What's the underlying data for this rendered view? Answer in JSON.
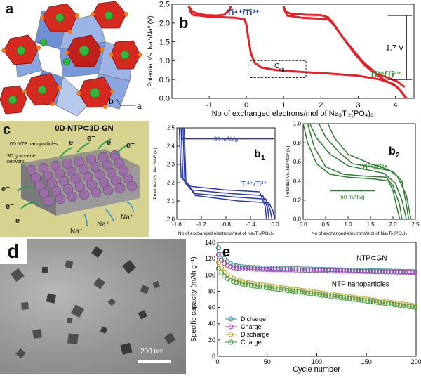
{
  "labels": {
    "a": "a",
    "b": "b",
    "c": "c",
    "d": "d",
    "e": "e",
    "b1": "b",
    "b1_sub": "1",
    "b2": "b",
    "b2_sub": "2"
  },
  "crystal": {
    "axis_a": "a",
    "axis_b": "b"
  },
  "scheme": {
    "title": "0D-NTP⊂3D-GN",
    "label_particles": "0D NTP nanoparticles",
    "label_network_1": "3D graphene",
    "label_network_2": "network",
    "electron": "e⁻",
    "sodium": "Na⁺",
    "colors": {
      "background": "#d6d391",
      "spheres": "#9a6fa6",
      "arrows": "#2e9e56"
    }
  },
  "tem": {
    "scale_bar": "200 nm"
  },
  "colors": {
    "red": "#e0242a",
    "blue": "#2b3aa8",
    "green": "#2e7d32",
    "green_text": "#2e8b2e",
    "blue_text": "#1f3fa8"
  },
  "chart_data": [
    {
      "id": "b",
      "type": "line",
      "xlabel": "No of exchanged electrons/mol of Na₃Ti₂(PO₄)₃",
      "ylabel": "Potential Vs. Na⁺/Na⁰ (V)",
      "xlim": [
        -2,
        4.5
      ],
      "ylim": [
        0,
        2.5
      ],
      "xticks": [
        "-1",
        "0",
        "1",
        "2",
        "3",
        "4"
      ],
      "yticks": [
        "0.0",
        "0.5",
        "1.0",
        "1.5",
        "2.0",
        "2.5"
      ],
      "annotations": {
        "ti43": "Ti⁴⁺/Ti³⁺",
        "ti32": "Ti³⁺/Ti²⁺",
        "csp": "C",
        "csp_sub": "sp",
        "gap": "1.7 V"
      },
      "series": [
        {
          "values": [
            [
              -1.55,
              2.45
            ],
            [
              -1.5,
              2.3
            ],
            [
              -1.45,
              2.22
            ],
            [
              -1.0,
              2.17
            ],
            [
              -0.3,
              2.14
            ],
            [
              -0.05,
              2.1
            ],
            [
              0.0,
              1.95
            ],
            [
              0.05,
              1.6
            ],
            [
              0.12,
              1.2
            ],
            [
              0.22,
              0.95
            ],
            [
              0.4,
              0.82
            ],
            [
              0.8,
              0.75
            ],
            [
              1.5,
              0.7
            ],
            [
              2.2,
              0.66
            ],
            [
              3.0,
              0.6
            ],
            [
              3.6,
              0.5
            ],
            [
              3.95,
              0.38
            ],
            [
              4.15,
              0.2
            ],
            [
              4.25,
              0.05
            ],
            [
              4.3,
              0.0
            ]
          ]
        },
        {
          "values": [
            [
              4.3,
              0.0
            ],
            [
              4.05,
              0.3
            ],
            [
              3.6,
              0.55
            ],
            [
              3.1,
              1.0
            ],
            [
              2.6,
              1.6
            ],
            [
              2.35,
              1.95
            ],
            [
              2.2,
              2.1
            ],
            [
              1.5,
              2.14
            ],
            [
              1.1,
              2.2
            ],
            [
              1.02,
              2.35
            ],
            [
              1.0,
              2.45
            ]
          ]
        },
        {
          "values": [
            [
              -1.55,
              2.45
            ],
            [
              -1.45,
              2.3
            ],
            [
              -1.3,
              2.25
            ],
            [
              -1.1,
              2.21
            ],
            [
              -0.8,
              2.2
            ],
            [
              -0.6,
              2.22
            ],
            [
              -0.45,
              2.35
            ],
            [
              -0.42,
              2.45
            ]
          ]
        },
        {
          "values": [
            [
              1.0,
              2.45
            ],
            [
              1.05,
              2.3
            ],
            [
              1.2,
              2.25
            ],
            [
              1.6,
              2.22
            ],
            [
              2.0,
              2.21
            ],
            [
              2.2,
              2.15
            ],
            [
              2.4,
              1.9
            ],
            [
              2.6,
              1.6
            ],
            [
              2.9,
              1.2
            ],
            [
              3.2,
              0.85
            ],
            [
              3.5,
              0.65
            ],
            [
              3.8,
              0.55
            ],
            [
              4.05,
              0.45
            ],
            [
              4.25,
              0.3
            ]
          ]
        }
      ]
    },
    {
      "id": "b1",
      "type": "line",
      "xlabel": "No of exchanged electrons/mol of Na₃Ti₂(PO₄)₃",
      "ylabel": "Potential Vs. Na⁺/Na⁰ (V)",
      "xlim": [
        -1.6,
        0.0
      ],
      "ylim": [
        2.0,
        2.5
      ],
      "xticks": [
        "-1.6",
        "-1.2",
        "-0.8",
        "-0.4",
        "0.0"
      ],
      "yticks": [
        "2.0",
        "2.1",
        "2.2",
        "2.3",
        "2.4",
        "2.5"
      ],
      "annotations": {
        "capacity": "90 mAh/g",
        "ti43": "Ti⁴⁺/Ti³⁺"
      },
      "series": [
        {
          "values": [
            [
              -1.48,
              2.5
            ],
            [
              -1.45,
              2.2
            ],
            [
              -1.3,
              2.13
            ],
            [
              -0.6,
              2.1
            ],
            [
              -0.1,
              2.09
            ],
            [
              -0.04,
              2.05
            ],
            [
              0.0,
              2.0
            ]
          ]
        },
        {
          "values": [
            [
              -1.5,
              2.5
            ],
            [
              -1.47,
              2.2
            ],
            [
              -1.3,
              2.14
            ],
            [
              -0.6,
              2.12
            ],
            [
              -0.15,
              2.11
            ],
            [
              -0.08,
              2.05
            ],
            [
              -0.05,
              2.0
            ]
          ]
        },
        {
          "values": [
            [
              -1.53,
              2.5
            ],
            [
              -1.5,
              2.22
            ],
            [
              -1.35,
              2.16
            ],
            [
              -0.7,
              2.14
            ],
            [
              -0.2,
              2.13
            ],
            [
              -0.12,
              2.06
            ],
            [
              -0.1,
              2.0
            ]
          ]
        },
        {
          "values": [
            [
              -1.56,
              2.5
            ],
            [
              -1.53,
              2.23
            ],
            [
              -1.38,
              2.18
            ],
            [
              -0.8,
              2.16
            ],
            [
              -0.25,
              2.15
            ],
            [
              -0.16,
              2.07
            ],
            [
              -0.14,
              2.0
            ]
          ]
        }
      ]
    },
    {
      "id": "b2",
      "type": "line",
      "xlabel": "No of exchanged electrons/mol of Na₃Ti₂(PO₄)₃",
      "ylabel": "Potential Vs. Na⁺/Na⁰ (V)",
      "xlim": [
        0.0,
        2.5
      ],
      "ylim": [
        0.0,
        1.0
      ],
      "xticks": [
        "0.0",
        "0.5",
        "1.0",
        "1.5",
        "2.0",
        "2.5"
      ],
      "yticks": [
        "0.0",
        "0.2",
        "0.4",
        "0.6",
        "0.8",
        "1.0"
      ],
      "annotations": {
        "capacity": "60 mAh/g",
        "ti32": "Ti³⁺/Ti²⁺"
      },
      "series": [
        {
          "values": [
            [
              0.0,
              1.0
            ],
            [
              0.1,
              0.8
            ],
            [
              0.3,
              0.58
            ],
            [
              0.6,
              0.47
            ],
            [
              1.0,
              0.44
            ],
            [
              1.6,
              0.42
            ],
            [
              1.9,
              0.4
            ],
            [
              2.0,
              0.3
            ],
            [
              2.1,
              0.1
            ],
            [
              2.15,
              0.0
            ]
          ]
        },
        {
          "values": [
            [
              0.1,
              1.0
            ],
            [
              0.25,
              0.75
            ],
            [
              0.5,
              0.55
            ],
            [
              0.9,
              0.47
            ],
            [
              1.4,
              0.45
            ],
            [
              1.85,
              0.44
            ],
            [
              2.0,
              0.35
            ],
            [
              2.15,
              0.15
            ],
            [
              2.2,
              0.0
            ]
          ]
        },
        {
          "values": [
            [
              2.3,
              0.0
            ],
            [
              2.2,
              0.2
            ],
            [
              2.05,
              0.38
            ],
            [
              1.8,
              0.48
            ],
            [
              1.4,
              0.52
            ],
            [
              1.0,
              0.56
            ],
            [
              0.6,
              0.68
            ],
            [
              0.3,
              0.85
            ],
            [
              0.15,
              1.0
            ]
          ]
        },
        {
          "values": [
            [
              2.35,
              0.0
            ],
            [
              2.3,
              0.15
            ],
            [
              2.2,
              0.4
            ],
            [
              2.0,
              0.5
            ],
            [
              1.5,
              0.55
            ],
            [
              1.1,
              0.58
            ],
            [
              0.8,
              0.7
            ],
            [
              0.5,
              0.86
            ],
            [
              0.35,
              1.0
            ]
          ]
        },
        {
          "values": [
            [
              0.55,
              1.0
            ],
            [
              0.7,
              0.85
            ],
            [
              1.0,
              0.68
            ],
            [
              1.5,
              0.58
            ],
            [
              1.9,
              0.52
            ],
            [
              2.1,
              0.45
            ],
            [
              2.3,
              0.25
            ],
            [
              2.4,
              0.0
            ]
          ]
        }
      ]
    },
    {
      "id": "e",
      "type": "scatter",
      "xlabel": "Cycle number",
      "ylabel": "Specific capacity (mAh g⁻¹)",
      "xlim": [
        0,
        200
      ],
      "ylim": [
        0,
        140
      ],
      "xticks": [
        "0",
        "50",
        "100",
        "150",
        "200"
      ],
      "yticks": [
        "0",
        "20",
        "40",
        "60",
        "80",
        "100",
        "120",
        "140"
      ],
      "annotations": {
        "ntp_gn": "NTP⊂GN",
        "ntp_np": "NTP nanoparticles"
      },
      "legend_position": "lower-left",
      "series": [
        {
          "name": "Dicharge",
          "color": "#2a8f8f",
          "start": 137,
          "plateau": 110,
          "end": 104,
          "decay": 7
        },
        {
          "name": "Charge",
          "color": "#a83cb8",
          "start": 128,
          "plateau": 108,
          "end": 103,
          "decay": 6
        },
        {
          "name": "Discharge",
          "color": "#b8a22a",
          "start": 118,
          "plateau": 95,
          "end": 62,
          "decay": 8
        },
        {
          "name": "Charge",
          "color": "#3a9a3a",
          "start": 110,
          "plateau": 92,
          "end": 60,
          "decay": 8
        }
      ]
    }
  ]
}
